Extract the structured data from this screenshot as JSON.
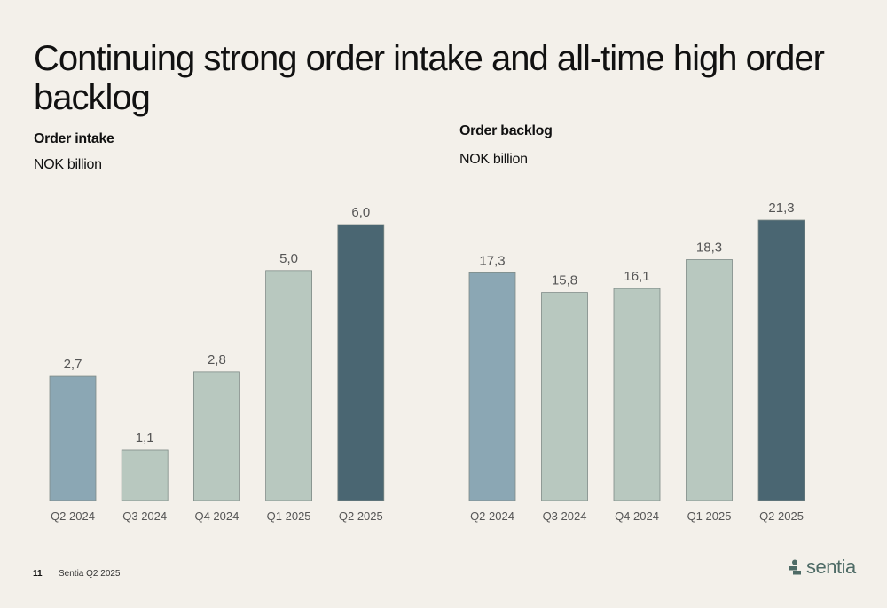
{
  "title": "Continuing strong order intake and all-time high order backlog",
  "footer": {
    "page_number": "11",
    "text": "Sentia Q2 2025"
  },
  "logo": {
    "word": "sentia",
    "icon": "sentia-logo-icon",
    "color": "#4e6b66"
  },
  "colors": {
    "light_blue": "#8ba7b4",
    "sage": "#b8c8bf",
    "dark_teal": "#4a6672",
    "background": "#f3f0ea"
  },
  "chart_data": [
    {
      "type": "bar",
      "title": "Order intake",
      "subtitle": "NOK billion",
      "categories": [
        "Q2 2024",
        "Q3 2024",
        "Q4 2024",
        "Q1 2025",
        "Q2 2025"
      ],
      "values": [
        2.7,
        1.1,
        2.8,
        5.0,
        6.0
      ],
      "value_labels": [
        "2,7",
        "1,1",
        "2,8",
        "5,0",
        "6,0"
      ],
      "bar_colors": [
        "#8ba7b4",
        "#b8c8bf",
        "#b8c8bf",
        "#b8c8bf",
        "#4a6672"
      ],
      "ylim": [
        0,
        6.0
      ],
      "grid": false
    },
    {
      "type": "bar",
      "title": "Order backlog",
      "subtitle": "NOK billion",
      "categories": [
        "Q2 2024",
        "Q3 2024",
        "Q4 2024",
        "Q1 2025",
        "Q2 2025"
      ],
      "values": [
        17.3,
        15.8,
        16.1,
        18.3,
        21.3
      ],
      "value_labels": [
        "17,3",
        "15,8",
        "16,1",
        "18,3",
        "21,3"
      ],
      "bar_colors": [
        "#8ba7b4",
        "#b8c8bf",
        "#b8c8bf",
        "#b8c8bf",
        "#4a6672"
      ],
      "ylim": [
        0,
        21.3
      ],
      "grid": false
    }
  ]
}
